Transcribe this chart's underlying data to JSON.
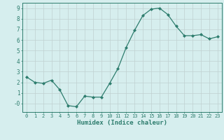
{
  "x": [
    0,
    1,
    2,
    3,
    4,
    5,
    6,
    7,
    8,
    9,
    10,
    11,
    12,
    13,
    14,
    15,
    16,
    17,
    18,
    19,
    20,
    21,
    22,
    23
  ],
  "y": [
    2.5,
    2.0,
    1.9,
    2.2,
    1.3,
    -0.2,
    -0.3,
    0.7,
    0.6,
    0.6,
    1.9,
    3.3,
    5.3,
    6.9,
    8.3,
    8.9,
    9.0,
    8.4,
    7.3,
    6.4,
    6.4,
    6.5,
    6.1,
    6.3
  ],
  "line_color": "#2e7d6e",
  "marker": "D",
  "marker_size": 2.0,
  "bg_color": "#d6eeee",
  "grid_color": "#c0d0d0",
  "axis_color": "#2e7d6e",
  "xlabel": "Humidex (Indice chaleur)",
  "ylim": [
    -0.8,
    9.5
  ],
  "xlim": [
    -0.5,
    23.5
  ],
  "yticks": [
    0,
    1,
    2,
    3,
    4,
    5,
    6,
    7,
    8,
    9
  ],
  "xticks": [
    0,
    1,
    2,
    3,
    4,
    5,
    6,
    7,
    8,
    9,
    10,
    11,
    12,
    13,
    14,
    15,
    16,
    17,
    18,
    19,
    20,
    21,
    22,
    23
  ]
}
